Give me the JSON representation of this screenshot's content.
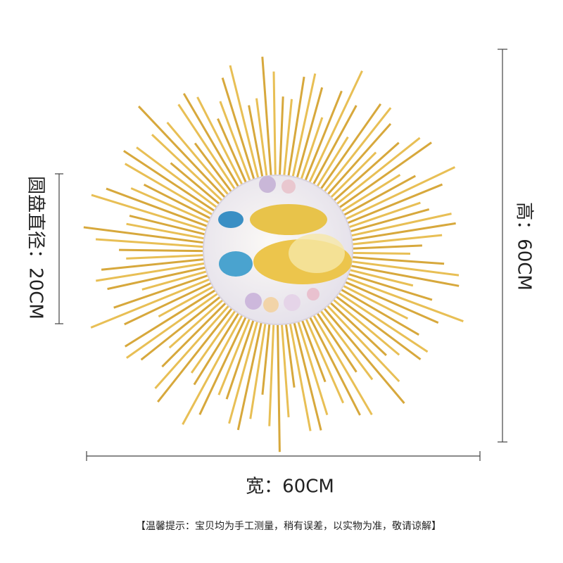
{
  "labels": {
    "disc_diameter": "圆盘直径：20CM",
    "height": "高：60CM",
    "width": "宽：60CM"
  },
  "note": "【温馨提示：宝贝均为手工测量，稍有误差，以实物为准，敬请谅解】"
}
